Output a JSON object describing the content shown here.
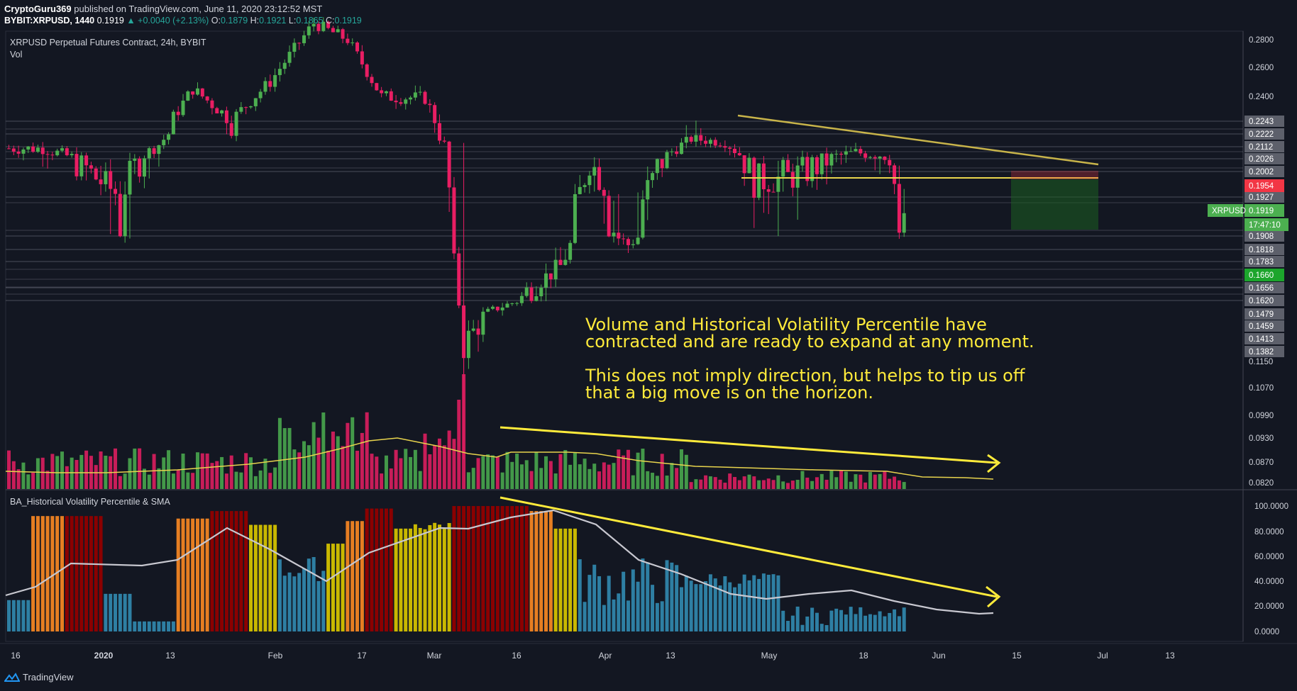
{
  "header": {
    "publisher": "CryptoGuru369",
    "published_text": "published on TradingView.com, June 11, 2020 23:12:52 MST",
    "symbol": "BYBIT:XRPUSD, 1440",
    "last": "0.1919",
    "change": "▲ +0.0040 (+2.13%)",
    "o_label": "O:",
    "o": "0.1879",
    "h_label": "H:",
    "h": "0.1921",
    "l_label": "L:",
    "l": "0.1865",
    "c_label": "C:",
    "c": "0.1919"
  },
  "chart_title": "XRPUSD Perpetual Futures Contract, 24h, BYBIT",
  "vol_label": "Vol",
  "indicator_title": "BA_Historical Volatility Percentile & SMA",
  "annotation": {
    "line1": "Volume and Historical Volatility Percentile have",
    "line2": "contracted and are ready to expand at any moment.",
    "line3": "This does not imply direction, but helps to tip us off",
    "line4": "that a big move is on the horizon."
  },
  "footer": {
    "brand": "TradingView"
  },
  "colors": {
    "up": "#4caf50",
    "down": "#e91e63",
    "background": "#131722",
    "annotation": "#ffeb3b",
    "trendline": "#c8b44a"
  },
  "chart_data": [
    {
      "type": "candlestick",
      "title": "XRPUSD Perpetual Futures Contract, 24h, BYBIT",
      "x_ticks": [
        "16",
        "2020",
        "13",
        "Feb",
        "17",
        "Mar",
        "16",
        "Apr",
        "13",
        "May",
        "18",
        "Jun",
        "15",
        "Jul",
        "13"
      ],
      "price_ticks": [
        "0.2800",
        "0.2600",
        "0.2400",
        "0.2243",
        "0.2222",
        "0.2112",
        "0.2026",
        "0.2002",
        "0.1927",
        "0.1908",
        "0.1818",
        "0.1783",
        "0.1656",
        "0.1620",
        "0.1479",
        "0.1459",
        "0.1413",
        "0.1382",
        "0.1150",
        "0.1070",
        "0.0990",
        "0.0930",
        "0.0870",
        "0.0820"
      ],
      "price_badges": [
        {
          "label": "0.1954",
          "color": "#f23645"
        },
        {
          "label": "0.1919",
          "color": "#4caf50"
        },
        {
          "label": "0.1660",
          "color": "#1ca52c"
        }
      ],
      "symbol_badge": "XRPUSD",
      "countdown_badge": "17:47:10",
      "approx_path": [
        {
          "x": "2019-12-16",
          "y": 0.21
        },
        {
          "x": "2020-01-01",
          "y": 0.193
        },
        {
          "x": "2020-01-09",
          "y": 0.213
        },
        {
          "x": "2020-01-16",
          "y": 0.245
        },
        {
          "x": "2020-01-24",
          "y": 0.225
        },
        {
          "x": "2020-02-01",
          "y": 0.25
        },
        {
          "x": "2020-02-10",
          "y": 0.292
        },
        {
          "x": "2020-02-17",
          "y": 0.28
        },
        {
          "x": "2020-02-24",
          "y": 0.24
        },
        {
          "x": "2020-03-04",
          "y": 0.239
        },
        {
          "x": "2020-03-08",
          "y": 0.213
        },
        {
          "x": "2020-03-12",
          "y": 0.14
        },
        {
          "x": "2020-03-20",
          "y": 0.156
        },
        {
          "x": "2020-04-01",
          "y": 0.176
        },
        {
          "x": "2020-04-07",
          "y": 0.203
        },
        {
          "x": "2020-04-15",
          "y": 0.185
        },
        {
          "x": "2020-04-28",
          "y": 0.218
        },
        {
          "x": "2020-05-05",
          "y": 0.215
        },
        {
          "x": "2020-05-11",
          "y": 0.197
        },
        {
          "x": "2020-05-20",
          "y": 0.199
        },
        {
          "x": "2020-06-01",
          "y": 0.207
        },
        {
          "x": "2020-06-08",
          "y": 0.205
        },
        {
          "x": "2020-06-10",
          "y": 0.1879
        },
        {
          "x": "2020-06-11",
          "y": 0.1919
        }
      ]
    },
    {
      "type": "bar",
      "title": "Vol",
      "sma_line": true
    },
    {
      "type": "bar",
      "title": "BA_Historical Volatility Percentile & SMA",
      "y_ticks": [
        "100.0000",
        "80.0000",
        "60.0000",
        "40.0000",
        "20.0000",
        "0.0000"
      ],
      "ylim": [
        0,
        100
      ],
      "color_bands": {
        "high": "#8b0000",
        "upper": "#e67e22",
        "mid": "#c9b800",
        "low": "#2e7fa3"
      }
    }
  ]
}
